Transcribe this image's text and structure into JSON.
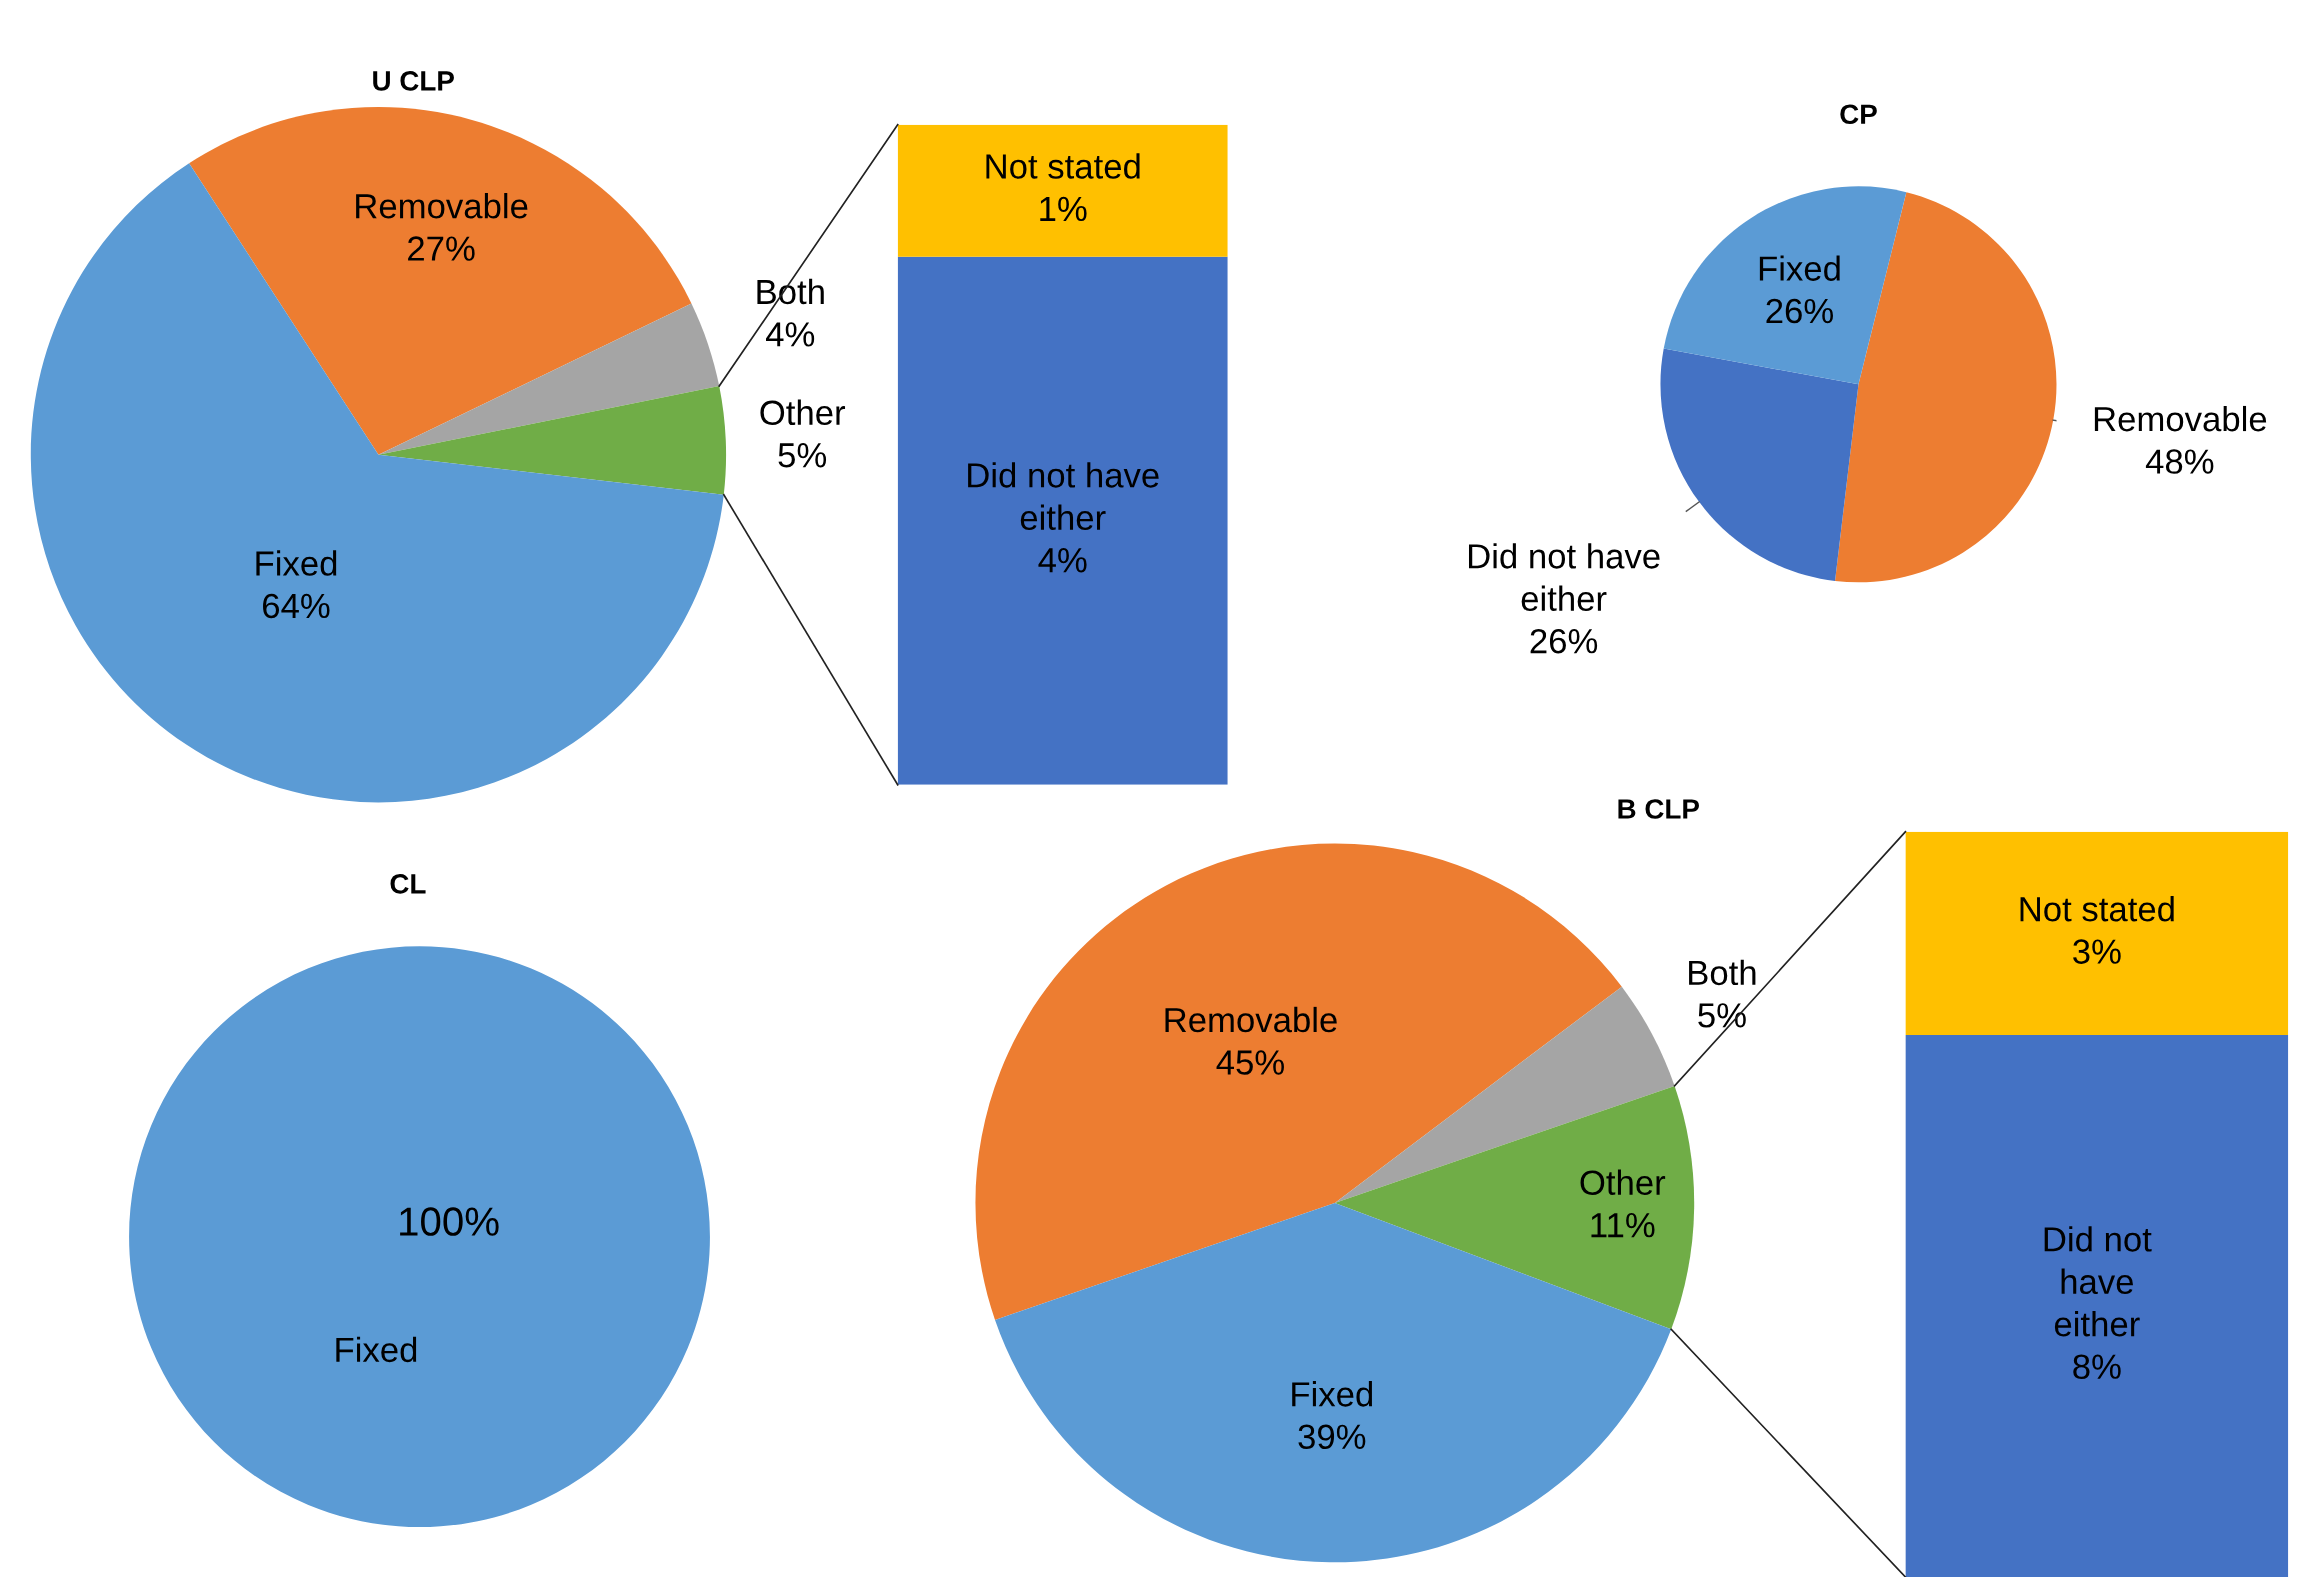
{
  "chart_data": [
    {
      "type": "pie",
      "title": "U CLP",
      "categories": [
        "Removable",
        "Both",
        "Other",
        "Fixed"
      ],
      "values": [
        27,
        4,
        5,
        64
      ],
      "colors": [
        "#ed7d31",
        "#a5a5a5",
        "#70ad47",
        "#5b9bd5"
      ],
      "value_labels": [
        "27%",
        "4%",
        "5%",
        "64%"
      ]
    },
    {
      "type": "bar",
      "stacked": true,
      "categories": [
        null
      ],
      "series": [
        {
          "name": "Did not have either",
          "color": "#4472c4",
          "values": [
            4
          ],
          "value_labels": [
            "4%"
          ]
        },
        {
          "name": "Not stated",
          "color": "#ffc000",
          "values": [
            1
          ],
          "value_labels": [
            "1%"
          ]
        }
      ]
    },
    {
      "type": "pie",
      "title": "CP",
      "categories": [
        "Removable",
        "Did not have either",
        "Fixed"
      ],
      "values": [
        48,
        26,
        26
      ],
      "colors": [
        "#ed7d31",
        "#4472c4",
        "#5b9bd5"
      ],
      "value_labels": [
        "48%",
        "26%",
        "26%"
      ]
    },
    {
      "type": "pie",
      "title": "CL",
      "categories": [
        "Fixed"
      ],
      "values": [
        100
      ],
      "colors": [
        "#5b9bd5"
      ],
      "value_labels": [
        "100%"
      ]
    },
    {
      "type": "pie",
      "title": "B CLP",
      "categories": [
        "Removable",
        "Both",
        "Other",
        "Fixed"
      ],
      "values": [
        45,
        5,
        11,
        39
      ],
      "colors": [
        "#ed7d31",
        "#a5a5a5",
        "#70ad47",
        "#5b9bd5"
      ],
      "value_labels": [
        "45%",
        "5%",
        "11%",
        "39%"
      ]
    },
    {
      "type": "bar",
      "stacked": true,
      "categories": [
        null
      ],
      "series": [
        {
          "name": "Did not have either",
          "color": "#4472c4",
          "values": [
            8
          ],
          "value_labels": [
            "8%"
          ]
        },
        {
          "name": "Not stated",
          "color": "#ffc000",
          "values": [
            3
          ],
          "value_labels": [
            "3%"
          ]
        }
      ]
    }
  ]
}
